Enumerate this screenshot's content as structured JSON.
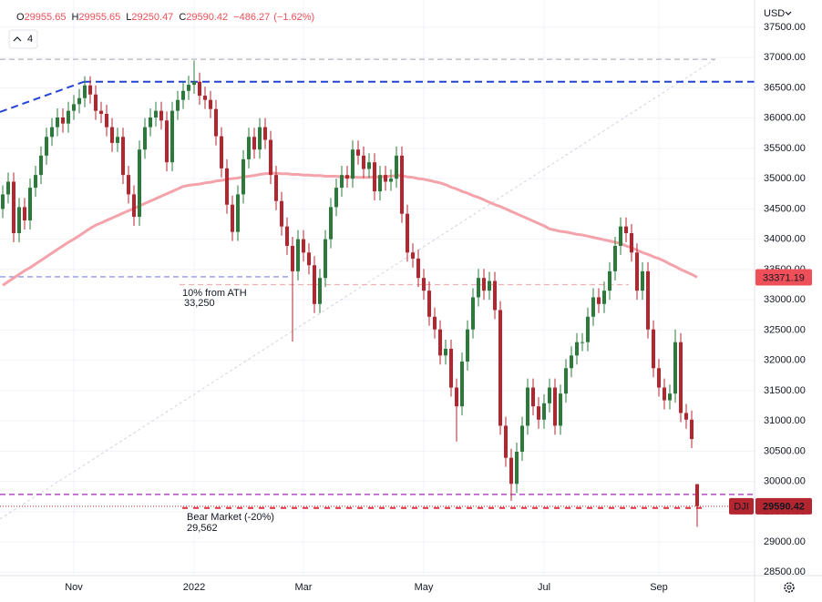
{
  "chart_data": {
    "type": "candlestick",
    "ohlc_letters": [
      "O",
      "H",
      "L",
      "C"
    ],
    "change": {
      "value": -486.27,
      "label": "−486.27"
    },
    "change_pct": {
      "value": -1.62,
      "label": "(−1.62%)"
    },
    "indicator_count": 4,
    "currency": "USD",
    "symbol": "DJI",
    "categories": [
      null,
      null,
      null,
      null,
      null,
      null,
      null,
      null,
      null,
      null,
      null,
      null,
      null,
      "Nov",
      null,
      null,
      null,
      null,
      null,
      null,
      null,
      null,
      null,
      null,
      null,
      null,
      null,
      null,
      null,
      null,
      null,
      null,
      null,
      null,
      null,
      "2022",
      null,
      null,
      null,
      null,
      null,
      null,
      null,
      null,
      null,
      null,
      null,
      null,
      null,
      null,
      null,
      null,
      null,
      null,
      null,
      "Mar",
      null,
      null,
      null,
      null,
      null,
      null,
      null,
      null,
      null,
      null,
      null,
      null,
      null,
      null,
      null,
      null,
      null,
      null,
      null,
      null,
      null,
      "May",
      null,
      null,
      null,
      null,
      null,
      null,
      null,
      null,
      null,
      null,
      null,
      null,
      null,
      null,
      null,
      null,
      null,
      null,
      null,
      null,
      null,
      "Jul",
      null,
      null,
      null,
      null,
      null,
      null,
      null,
      null,
      null,
      null,
      null,
      null,
      null,
      null,
      null,
      null,
      null,
      null,
      null,
      null,
      "Sep",
      null,
      null,
      null,
      null,
      null,
      null,
      null
    ],
    "open": [
      34500,
      34740,
      34950,
      34100,
      34530,
      34310,
      34850,
      35060,
      35380,
      35690,
      35850,
      36010,
      35910,
      36120,
      36230,
      36330,
      36540,
      36390,
      36120,
      36070,
      35850,
      35590,
      35690,
      35060,
      34740,
      34370,
      35480,
      35850,
      36010,
      36120,
      35960,
      35270,
      36120,
      36300,
      36450,
      36550,
      36600,
      36370,
      36300,
      36150,
      35700,
      35170,
      34570,
      34120,
      34740,
      35320,
      35690,
      35480,
      35850,
      35640,
      35060,
      34630,
      34210,
      33890,
      33470,
      34000,
      33780,
      33570,
      32930,
      33360,
      34000,
      34530,
      34850,
      35060,
      35000,
      35480,
      35380,
      35160,
      35270,
      34790,
      35060,
      34950,
      35000,
      35380,
      34420,
      33780,
      33680,
      33360,
      33150,
      32720,
      32510,
      32080,
      32190,
      31550,
      31240,
      31980,
      32510,
      33040,
      33360,
      33150,
      33310,
      32830,
      30920,
      30390,
      29960,
      30490,
      30920,
      31550,
      31240,
      31020,
      31290,
      31550,
      30920,
      31450,
      31870,
      32080,
      32300,
      32300,
      32720,
      33040,
      32930,
      33150,
      33470,
      33890,
      34210,
      34100,
      33780,
      33150,
      33470,
      32510,
      31870,
      31550,
      31340,
      31450,
      32300,
      31130,
      31020,
      29955.65
    ],
    "high": [
      34890,
      35100,
      35100,
      34680,
      34680,
      35000,
      35210,
      35530,
      35840,
      36000,
      36160,
      36160,
      36270,
      36380,
      36480,
      36690,
      36690,
      36540,
      36270,
      36220,
      36000,
      35840,
      35840,
      35210,
      34890,
      35630,
      36000,
      36160,
      36270,
      36270,
      36110,
      36270,
      36450,
      36600,
      36700,
      36950,
      36750,
      36520,
      36450,
      36300,
      35850,
      35320,
      34720,
      34890,
      35470,
      35840,
      35840,
      36000,
      36000,
      35790,
      35210,
      34780,
      34360,
      34040,
      34150,
      34150,
      33930,
      33720,
      33510,
      34150,
      34680,
      35000,
      35210,
      35210,
      35630,
      35630,
      35530,
      35420,
      35420,
      35210,
      35210,
      35150,
      35530,
      35530,
      34570,
      33930,
      33830,
      33510,
      33300,
      32870,
      32660,
      32340,
      32340,
      31700,
      32130,
      32660,
      33190,
      33510,
      33510,
      33460,
      33460,
      32980,
      31070,
      30540,
      30640,
      31070,
      31700,
      31700,
      31390,
      31440,
      31700,
      31700,
      31600,
      32020,
      32230,
      32450,
      32450,
      32870,
      33190,
      33190,
      33300,
      33620,
      34040,
      34360,
      34360,
      34250,
      33930,
      33620,
      33620,
      32660,
      32020,
      31700,
      31600,
      32510,
      32450,
      31280,
      31170,
      29955.65
    ],
    "low": [
      34350,
      34590,
      33950,
      33950,
      34160,
      34160,
      34700,
      34910,
      35230,
      35540,
      35700,
      35760,
      35760,
      35970,
      36080,
      36180,
      36240,
      35970,
      35920,
      35700,
      35440,
      35440,
      34910,
      34590,
      34220,
      34220,
      35330,
      35700,
      35860,
      35810,
      35120,
      35120,
      35970,
      36150,
      36300,
      36400,
      36220,
      36150,
      36000,
      35550,
      35020,
      34420,
      33970,
      33970,
      34590,
      35170,
      35330,
      35330,
      35490,
      34910,
      34480,
      34060,
      33740,
      32310,
      33320,
      33630,
      33420,
      32780,
      32780,
      33210,
      33850,
      34380,
      34700,
      34850,
      34850,
      35230,
      35010,
      35010,
      34640,
      34640,
      34800,
      34800,
      34850,
      34270,
      33630,
      33530,
      33210,
      33000,
      32570,
      32360,
      31930,
      31930,
      31400,
      30660,
      31090,
      31830,
      32360,
      32890,
      33000,
      33000,
      32680,
      30770,
      30240,
      29680,
      29810,
      30340,
      30770,
      31090,
      30870,
      30870,
      31140,
      30770,
      30770,
      31300,
      31720,
      31930,
      32150,
      32150,
      32570,
      32780,
      32780,
      33000,
      33320,
      33740,
      33950,
      33630,
      33000,
      33000,
      32360,
      31720,
      31400,
      31190,
      31190,
      31300,
      30980,
      30870,
      30550,
      29250.47
    ],
    "close": [
      34740,
      34950,
      34100,
      34530,
      34310,
      34850,
      35060,
      35380,
      35690,
      35850,
      36010,
      35910,
      36120,
      36230,
      36330,
      36540,
      36390,
      36120,
      36070,
      35850,
      35590,
      35690,
      35060,
      34740,
      34370,
      35480,
      35850,
      36010,
      36120,
      35960,
      35270,
      36120,
      36300,
      36450,
      36550,
      36600,
      36370,
      36300,
      36150,
      35700,
      35170,
      34570,
      34120,
      34740,
      35320,
      35690,
      35480,
      35850,
      35640,
      35060,
      34630,
      34210,
      33890,
      33470,
      34000,
      33780,
      33570,
      32930,
      33360,
      34000,
      34530,
      34850,
      35060,
      35000,
      35480,
      35380,
      35160,
      35270,
      34790,
      35060,
      34950,
      35000,
      35380,
      34420,
      33780,
      33680,
      33360,
      33150,
      32720,
      32510,
      32080,
      32190,
      31550,
      31240,
      31980,
      32510,
      33040,
      33360,
      33150,
      33310,
      32830,
      30920,
      30390,
      29960,
      30490,
      30920,
      31550,
      31240,
      31020,
      31290,
      31550,
      30920,
      31450,
      31870,
      32080,
      32300,
      32300,
      32720,
      33040,
      32930,
      33150,
      33470,
      33890,
      34210,
      34100,
      33780,
      33150,
      33470,
      32510,
      31870,
      31550,
      31340,
      31450,
      32300,
      31130,
      31020,
      30700,
      29590.42
    ],
    "up_color": "#2b7a3b",
    "down_color": "#b3262f",
    "ma": {
      "color": "#f4a3aa",
      "values": [
        33240,
        33300,
        33360,
        33420,
        33480,
        33530,
        33590,
        33650,
        33710,
        33770,
        33830,
        33890,
        33950,
        34000,
        34060,
        34120,
        34180,
        34230,
        34270,
        34310,
        34350,
        34390,
        34430,
        34470,
        34510,
        34550,
        34590,
        34630,
        34670,
        34710,
        34750,
        34790,
        34830,
        34870,
        34890,
        34900,
        34910,
        34930,
        34940,
        34960,
        34970,
        34990,
        35000,
        35010,
        35030,
        35040,
        35050,
        35070,
        35080,
        35090,
        35090,
        35080,
        35080,
        35070,
        35070,
        35060,
        35060,
        35050,
        35050,
        35040,
        35040,
        35040,
        35030,
        35030,
        35030,
        35020,
        35020,
        35020,
        35030,
        35030,
        35040,
        35040,
        35050,
        35050,
        35030,
        35020,
        35000,
        34990,
        34970,
        34950,
        34930,
        34900,
        34860,
        34830,
        34790,
        34760,
        34720,
        34690,
        34650,
        34610,
        34570,
        34540,
        34500,
        34460,
        34420,
        34380,
        34340,
        34300,
        34260,
        34220,
        34170,
        34150,
        34130,
        34120,
        34100,
        34080,
        34070,
        34050,
        34030,
        34010,
        33990,
        33970,
        33950,
        33930,
        33890,
        33860,
        33820,
        33780,
        33750,
        33710,
        33680,
        33640,
        33590,
        33550,
        33500,
        33460,
        33420,
        33371.19
      ]
    },
    "label_color": "#ef4f58",
    "ylim": [
      28460,
      37950
    ],
    "yticks": [
      {
        "value": 28500,
        "label": "28500.00"
      },
      {
        "value": 29000,
        "label": "29000.00"
      },
      {
        "value": 29500,
        "label": "29500.00"
      },
      {
        "value": 30000,
        "label": "30000.00"
      },
      {
        "value": 30500,
        "label": "30500.00"
      },
      {
        "value": 31000,
        "label": "31000.00"
      },
      {
        "value": 31500,
        "label": "31500.00"
      },
      {
        "value": 32000,
        "label": "32000.00"
      },
      {
        "value": 32500,
        "label": "32500.00"
      },
      {
        "value": 33000,
        "label": "33000.00"
      },
      {
        "value": 33500,
        "label": "33500.00"
      },
      {
        "value": 34000,
        "label": "34000.00"
      },
      {
        "value": 34500,
        "label": "34500.00"
      },
      {
        "value": 35000,
        "label": "35000.00"
      },
      {
        "value": 35500,
        "label": "35500.00"
      },
      {
        "value": 36000,
        "label": "36000.00"
      },
      {
        "value": 36500,
        "label": "36500.00"
      },
      {
        "value": 37000,
        "label": "37000.00"
      },
      {
        "value": 37500,
        "label": "37500.00"
      }
    ],
    "grid": true,
    "levels": [
      {
        "value": 36970,
        "color": "#b2b5be",
        "dash": "6 4"
      },
      {
        "value": 36600,
        "color": "#2442d6",
        "dash": "8 5"
      },
      {
        "value": 33379,
        "color": "#7b7fe6",
        "dash": "6 4"
      },
      {
        "value": 33250,
        "label": "33,250",
        "title": "10% from ATH",
        "color": "#f4b0b0",
        "dash": "6 4"
      },
      {
        "value": 29785,
        "color": "#b44ac4",
        "dash": "6 4"
      },
      {
        "value": 29562,
        "label": "29,562",
        "title": "Bear Market (-20%)",
        "color": "#e0323c",
        "dash": "6 6"
      }
    ],
    "trendlines": [
      {
        "values": [
          36101,
          36600
        ],
        "color": "#2442d6",
        "dash": "8 5"
      },
      {
        "values": [
          29378,
          36974
        ],
        "color": "#d1d4dc",
        "dash": "3 3"
      }
    ]
  }
}
